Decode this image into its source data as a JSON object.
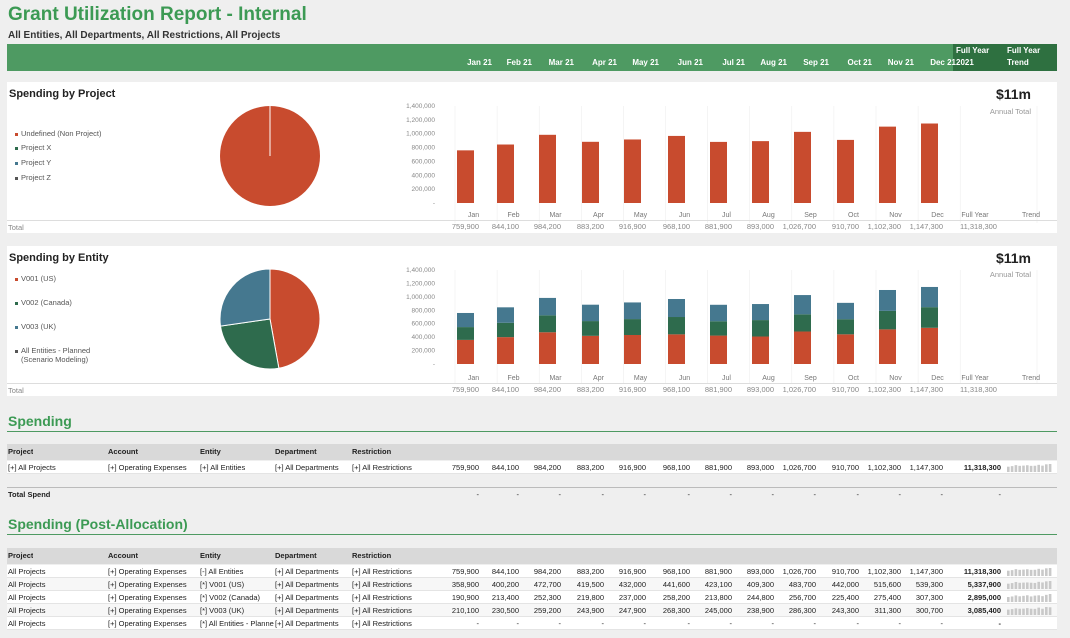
{
  "report": {
    "title": "Grant Utilization Report - Internal",
    "subtitle": "All Entities, All Departments, All Restrictions, All Projects"
  },
  "months_header": [
    "Jan 21",
    "Feb 21",
    "Mar 21",
    "Apr 21",
    "May 21",
    "Jun 21",
    "Jul 21",
    "Aug 21",
    "Sep 21",
    "Oct 21",
    "Nov 21",
    "Dec 21"
  ],
  "fy_header": [
    "Full Year",
    "2021"
  ],
  "trend_header": [
    "Full Year",
    "Trend"
  ],
  "months_short": [
    "Jan",
    "Feb",
    "Mar",
    "Apr",
    "May",
    "Jun",
    "Jul",
    "Aug",
    "Sep",
    "Oct",
    "Nov",
    "Dec"
  ],
  "full_year_label": "Full Year",
  "trend_label": "Trend",
  "total_label": "Total",
  "colors": {
    "accent": "#3c9a54",
    "bar_green": "#4e9a62",
    "red": "#c84b2e",
    "teal": "#45788f",
    "dark_green": "#2e6b4d",
    "gray": "#555555"
  },
  "y_ticks": [
    "1,400,000",
    "1,200,000",
    "1,000,000",
    "800,000",
    "600,000",
    "400,000",
    "200,000",
    "-"
  ],
  "project_panel": {
    "title": "Spending by Project",
    "big_value": "$11m",
    "annual_label": "Annual Total",
    "legend": [
      {
        "label": "Undefined (Non Project)",
        "color": "#c84b2e"
      },
      {
        "label": "Project X",
        "color": "#2e6b4d"
      },
      {
        "label": "Project Y",
        "color": "#45788f"
      },
      {
        "label": "Project Z",
        "color": "#555555"
      }
    ],
    "totals": [
      "759,900",
      "844,100",
      "984,200",
      "883,200",
      "916,900",
      "968,100",
      "881,900",
      "893,000",
      "1,026,700",
      "910,700",
      "1,102,300",
      "1,147,300"
    ],
    "full_year_total": "11,318,300"
  },
  "entity_panel": {
    "title": "Spending by Entity",
    "big_value": "$11m",
    "annual_label": "Annual Total",
    "legend": [
      {
        "label": "V001 (US)",
        "color": "#c84b2e"
      },
      {
        "label": "V002 (Canada)",
        "color": "#2e6b4d"
      },
      {
        "label": "V003 (UK)",
        "color": "#45788f"
      },
      {
        "label": "All Entities - Planned",
        "label2": "(Scenario Modeling)",
        "color": "#555555"
      }
    ],
    "totals": [
      "759,900",
      "844,100",
      "984,200",
      "883,200",
      "916,900",
      "968,100",
      "881,900",
      "893,000",
      "1,026,700",
      "910,700",
      "1,102,300",
      "1,147,300"
    ],
    "full_year_total": "11,318,300"
  },
  "chart_data": [
    {
      "type": "bar",
      "title": "Spending by Project",
      "categories": [
        "Jan",
        "Feb",
        "Mar",
        "Apr",
        "May",
        "Jun",
        "Jul",
        "Aug",
        "Sep",
        "Oct",
        "Nov",
        "Dec"
      ],
      "series": [
        {
          "name": "Undefined (Non Project)",
          "values": [
            759900,
            844100,
            984200,
            883200,
            916900,
            968100,
            881900,
            893000,
            1026700,
            910700,
            1102300,
            1147300
          ]
        }
      ],
      "ylim": [
        0,
        1400000
      ]
    },
    {
      "type": "pie",
      "title": "Spending by Project",
      "slices": [
        {
          "name": "Undefined (Non Project)",
          "value": 100
        }
      ]
    },
    {
      "type": "bar",
      "title": "Spending by Entity",
      "stacked": true,
      "categories": [
        "Jan",
        "Feb",
        "Mar",
        "Apr",
        "May",
        "Jun",
        "Jul",
        "Aug",
        "Sep",
        "Oct",
        "Nov",
        "Dec"
      ],
      "series": [
        {
          "name": "V001 (US)",
          "values": [
            358900,
            400200,
            472700,
            419500,
            432000,
            441600,
            423100,
            409300,
            483700,
            442000,
            515600,
            539300
          ]
        },
        {
          "name": "V002 (Canada)",
          "values": [
            190900,
            213400,
            252300,
            219800,
            237000,
            258200,
            213800,
            244800,
            256700,
            225400,
            275400,
            307300
          ]
        },
        {
          "name": "V003 (UK)",
          "values": [
            210100,
            230500,
            259200,
            243900,
            247900,
            268300,
            245000,
            238900,
            286300,
            243300,
            311300,
            300700
          ]
        }
      ],
      "ylim": [
        0,
        1400000
      ]
    },
    {
      "type": "pie",
      "title": "Spending by Entity",
      "slices": [
        {
          "name": "V001 (US)",
          "value": 5337900
        },
        {
          "name": "V002 (Canada)",
          "value": 2895000
        },
        {
          "name": "V003 (UK)",
          "value": 3085400
        }
      ]
    }
  ],
  "spending": {
    "title": "Spending",
    "headers": [
      "Project",
      "Account",
      "Entity",
      "Department",
      "Restriction"
    ],
    "rows": [
      {
        "project": "[+] All Projects",
        "account": "[+] Operating Expenses",
        "entity": "[+] All Entities",
        "department": "[+] All Departments",
        "restriction": "[+] All Restrictions",
        "values": [
          "759,900",
          "844,100",
          "984,200",
          "883,200",
          "916,900",
          "968,100",
          "881,900",
          "893,000",
          "1,026,700",
          "910,700",
          "1,102,300",
          "1,147,300"
        ],
        "total": "11,318,300",
        "spark": [
          759900,
          844100,
          984200,
          883200,
          916900,
          968100,
          881900,
          893000,
          1026700,
          910700,
          1102300,
          1147300
        ]
      }
    ],
    "total_spend_label": "Total Spend",
    "total_spend_values": [
      "-",
      "-",
      "-",
      "-",
      "-",
      "-",
      "-",
      "-",
      "-",
      "-",
      "-",
      "-",
      "-"
    ]
  },
  "post_allocation": {
    "title": "Spending (Post-Allocation)",
    "headers": [
      "Project",
      "Account",
      "Entity",
      "Department",
      "Restriction"
    ],
    "rows": [
      {
        "project": "All Projects",
        "account": "[+] Operating Expenses",
        "entity": "[-] All Entities",
        "department": "[+] All Departments",
        "restriction": "[+] All Restrictions",
        "values": [
          "759,900",
          "844,100",
          "984,200",
          "883,200",
          "916,900",
          "968,100",
          "881,900",
          "893,000",
          "1,026,700",
          "910,700",
          "1,102,300",
          "1,147,300"
        ],
        "total": "11,318,300",
        "spark": [
          759900,
          844100,
          984200,
          883200,
          916900,
          968100,
          881900,
          893000,
          1026700,
          910700,
          1102300,
          1147300
        ]
      },
      {
        "project": "All Projects",
        "account": "[+] Operating Expenses",
        "entity": "[*] V001 (US)",
        "department": "[+] All Departments",
        "restriction": "[+] All Restrictions",
        "values": [
          "358,900",
          "400,200",
          "472,700",
          "419,500",
          "432,000",
          "441,600",
          "423,100",
          "409,300",
          "483,700",
          "442,000",
          "515,600",
          "539,300"
        ],
        "total": "5,337,900",
        "spark": [
          358900,
          400200,
          472700,
          419500,
          432000,
          441600,
          423100,
          409300,
          483700,
          442000,
          515600,
          539300
        ]
      },
      {
        "project": "All Projects",
        "account": "[+] Operating Expenses",
        "entity": "[*] V002 (Canada)",
        "department": "[+] All Departments",
        "restriction": "[+] All Restrictions",
        "values": [
          "190,900",
          "213,400",
          "252,300",
          "219,800",
          "237,000",
          "258,200",
          "213,800",
          "244,800",
          "256,700",
          "225,400",
          "275,400",
          "307,300"
        ],
        "total": "2,895,000",
        "spark": [
          190900,
          213400,
          252300,
          219800,
          237000,
          258200,
          213800,
          244800,
          256700,
          225400,
          275400,
          307300
        ]
      },
      {
        "project": "All Projects",
        "account": "[+] Operating Expenses",
        "entity": "[*] V003 (UK)",
        "department": "[+] All Departments",
        "restriction": "[+] All Restrictions",
        "values": [
          "210,100",
          "230,500",
          "259,200",
          "243,900",
          "247,900",
          "268,300",
          "245,000",
          "238,900",
          "286,300",
          "243,300",
          "311,300",
          "300,700"
        ],
        "total": "3,085,400",
        "spark": [
          210100,
          230500,
          259200,
          243900,
          247900,
          268300,
          245000,
          238900,
          286300,
          243300,
          311300,
          300700
        ]
      },
      {
        "project": "All Projects",
        "account": "[+] Operating Expenses",
        "entity": "[*] All Entities - Planned (Scenario Modeling)",
        "department": "[+] All Departments",
        "restriction": "[+] All Restrictions",
        "values": [
          "-",
          "-",
          "-",
          "-",
          "-",
          "-",
          "-",
          "-",
          "-",
          "-",
          "-",
          "-"
        ],
        "total": "-",
        "spark": []
      }
    ]
  }
}
